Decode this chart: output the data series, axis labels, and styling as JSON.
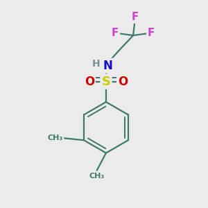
{
  "bg_color": "#ebebeb",
  "bond_color": "#3d7a6a",
  "bond_width": 1.6,
  "atom_colors": {
    "F": "#d040d0",
    "N": "#1010cc",
    "H": "#7a9090",
    "S": "#cccc00",
    "O": "#cc0000",
    "C": "#3d7a6a"
  },
  "figsize": [
    3.0,
    3.0
  ],
  "dpi": 100
}
